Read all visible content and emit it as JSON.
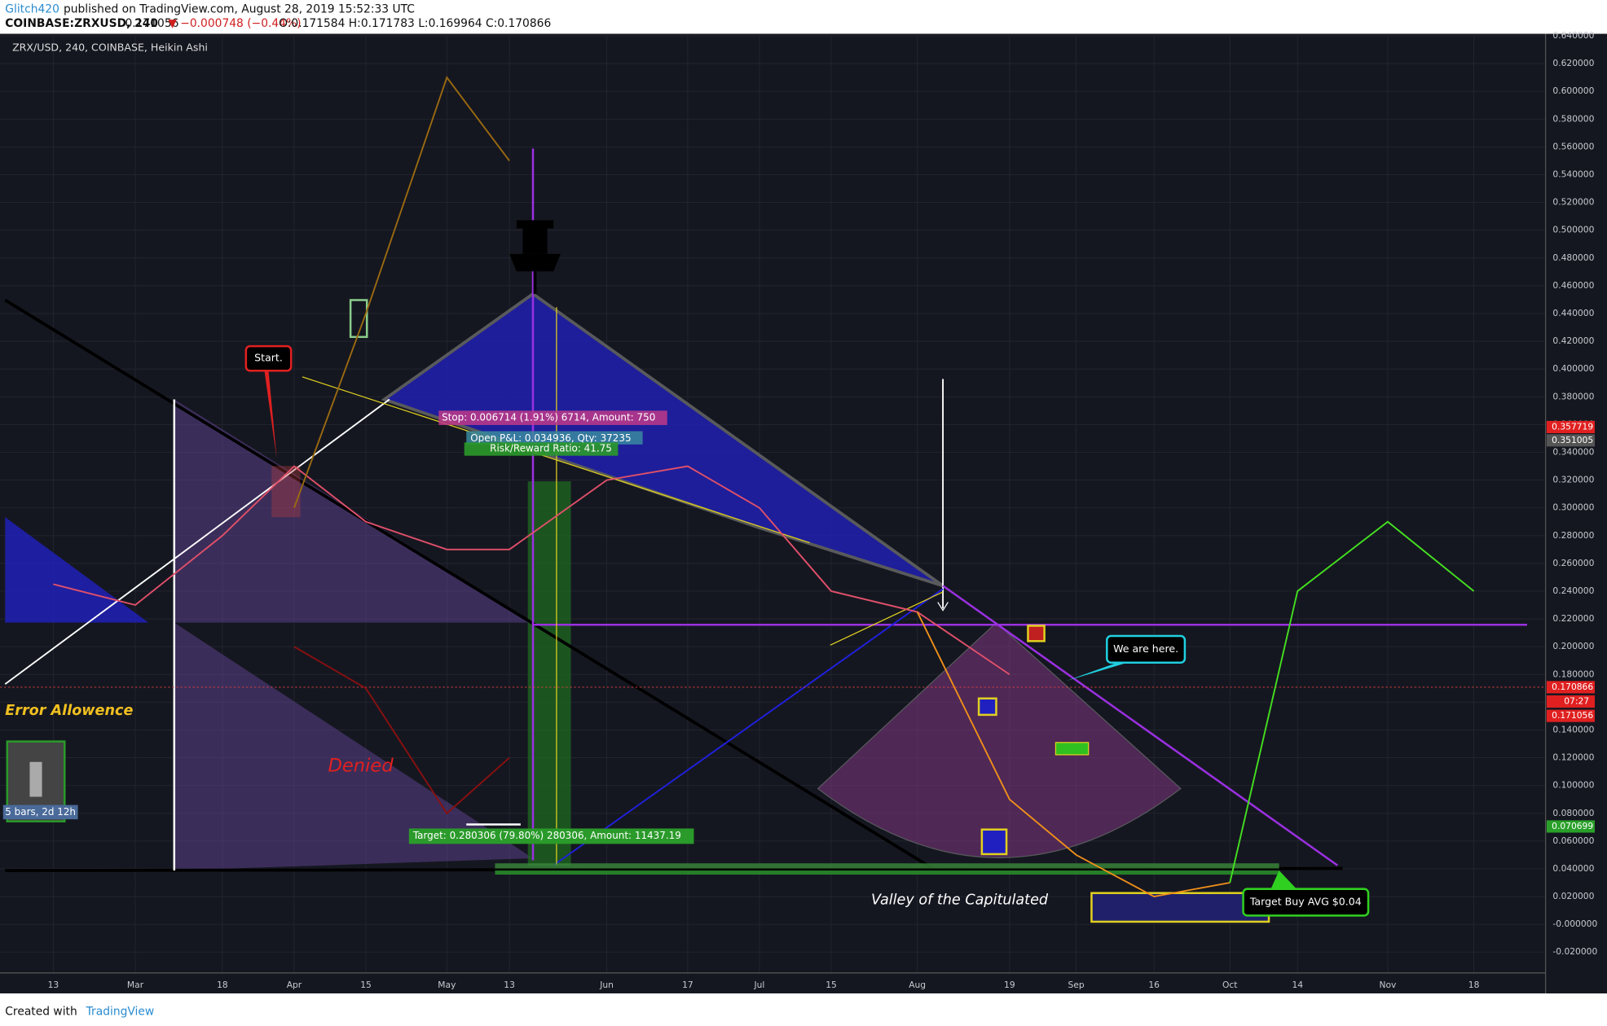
{
  "header": {
    "author": "Glitch420",
    "published": "published on TradingView.com, August 28, 2019 15:52:33 UTC",
    "symbol": "COINBASE:ZRXUSD, 240",
    "last": "0.171056",
    "change": "▼ −0.000748 (−0.44%)",
    "ohlc": "O:0.171584 H:0.171783 L:0.169964 C:0.170866"
  },
  "chart_data": {
    "type": "line",
    "title": "ZRX/USD, 240, COINBASE, Heikin Ashi",
    "categories": [
      "13",
      "Mar",
      "18",
      "Apr",
      "15",
      "May",
      "13",
      "Jun",
      "17",
      "Jul",
      "15",
      "Aug",
      "19",
      "Sep",
      "16",
      "Oct",
      "14",
      "Nov",
      "18"
    ],
    "values": [
      0.245,
      0.23,
      0.28,
      0.33,
      0.29,
      0.27,
      0.27,
      0.32,
      0.33,
      0.3,
      0.24,
      0.225,
      0.18,
      null,
      null,
      null,
      null,
      null,
      null
    ],
    "color": "#e0506a",
    "series": [
      {
        "color": "#9a6a10",
        "values": [
          null,
          null,
          null,
          0.3,
          0.44,
          0.61,
          0.55,
          null,
          null,
          null,
          null,
          null,
          null,
          null,
          null,
          null,
          null,
          null,
          null
        ]
      },
      {
        "color": "#8a1010",
        "values": [
          null,
          null,
          null,
          0.2,
          0.17,
          0.08,
          0.12,
          null,
          null,
          null,
          null,
          null,
          null,
          null,
          null,
          null,
          null,
          null,
          null
        ]
      },
      {
        "color": "#f0901a",
        "values": [
          null,
          null,
          null,
          null,
          null,
          null,
          null,
          null,
          null,
          null,
          null,
          0.225,
          0.09,
          0.05,
          0.02,
          0.03,
          null,
          null,
          null
        ]
      },
      {
        "color": "#44e020",
        "values": [
          null,
          null,
          null,
          null,
          null,
          null,
          null,
          null,
          null,
          null,
          null,
          null,
          null,
          null,
          null,
          0.03,
          0.24,
          0.29,
          0.24
        ]
      }
    ],
    "ylim": [
      -0.035,
      0.64
    ],
    "yticks": [
      {
        "value": 0.64,
        "label": "0.640000"
      },
      {
        "value": 0.62,
        "label": "0.620000"
      },
      {
        "value": 0.6,
        "label": "0.600000"
      },
      {
        "value": 0.58,
        "label": "0.580000"
      },
      {
        "value": 0.56,
        "label": "0.560000"
      },
      {
        "value": 0.54,
        "label": "0.540000"
      },
      {
        "value": 0.52,
        "label": "0.520000"
      },
      {
        "value": 0.5,
        "label": "0.500000"
      },
      {
        "value": 0.48,
        "label": "0.480000"
      },
      {
        "value": 0.46,
        "label": "0.460000"
      },
      {
        "value": 0.44,
        "label": "0.440000"
      },
      {
        "value": 0.42,
        "label": "0.420000"
      },
      {
        "value": 0.4,
        "label": "0.400000"
      },
      {
        "value": 0.38,
        "label": "0.380000"
      },
      {
        "value": 0.36,
        "label": "0.360000"
      },
      {
        "value": 0.34,
        "label": "0.340000"
      },
      {
        "value": 0.32,
        "label": "0.320000"
      },
      {
        "value": 0.3,
        "label": "0.300000"
      },
      {
        "value": 0.28,
        "label": "0.280000"
      },
      {
        "value": 0.26,
        "label": "0.260000"
      },
      {
        "value": 0.24,
        "label": "0.240000"
      },
      {
        "value": 0.22,
        "label": "0.220000"
      },
      {
        "value": 0.2,
        "label": "0.200000"
      },
      {
        "value": 0.18,
        "label": "0.180000"
      },
      {
        "value": 0.16,
        "label": "0.160000"
      },
      {
        "value": 0.14,
        "label": "0.140000"
      },
      {
        "value": 0.12,
        "label": "0.120000"
      },
      {
        "value": 0.1,
        "label": "0.100000"
      },
      {
        "value": 0.08,
        "label": "0.080000"
      },
      {
        "value": 0.06,
        "label": "0.060000"
      },
      {
        "value": 0.04,
        "label": "0.040000"
      },
      {
        "value": 0.02,
        "label": "0.020000"
      },
      {
        "value": 0,
        "label": "-0.000000"
      },
      {
        "value": -0.02,
        "label": "-0.020000"
      }
    ],
    "grid": true,
    "price_tags": {
      "high_mark": "0.357719",
      "mid_mark": "0.351005",
      "close": "0.170866",
      "countdown": "07:27",
      "last": "0.171056",
      "low_mark": "0.070699"
    },
    "annotations": {
      "start": "Start.",
      "here": "We are here.",
      "error": "Error Allowence",
      "denied": "Denied",
      "valley": "Valley of the Capitulated",
      "target_buy": "Target Buy AVG $0.04",
      "stop": "Stop: 0.006714 (1.91%) 6714, Amount: 750",
      "open": "Open P&L: 0.034936, Qty: 37235",
      "risk": "Risk/Reward Ratio: 41.75",
      "target": "Target: 0.280306 (79.80%) 280306, Amount: 11437.19",
      "range": "5 bars, 2d 12h"
    }
  },
  "footer": {
    "created": "Created with",
    "brand": "TradingView"
  }
}
